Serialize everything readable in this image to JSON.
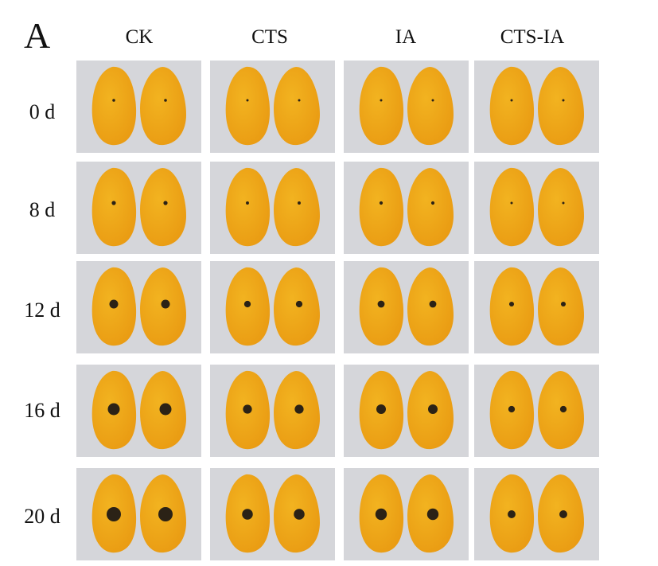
{
  "panel_label": "A",
  "columns": [
    {
      "label": "CK"
    },
    {
      "label": "CTS"
    },
    {
      "label": "IA"
    },
    {
      "label": "CTS-IA"
    }
  ],
  "rows": [
    {
      "label": "0 d"
    },
    {
      "label": "8 d"
    },
    {
      "label": "12 d"
    },
    {
      "label": "16 d"
    },
    {
      "label": "20 d"
    }
  ],
  "colors": {
    "background_gray": "#d5d6da",
    "mango_yellow": "#f2b320",
    "mango_orange": "#e99a12",
    "lesion_dark": "#2b2216"
  }
}
